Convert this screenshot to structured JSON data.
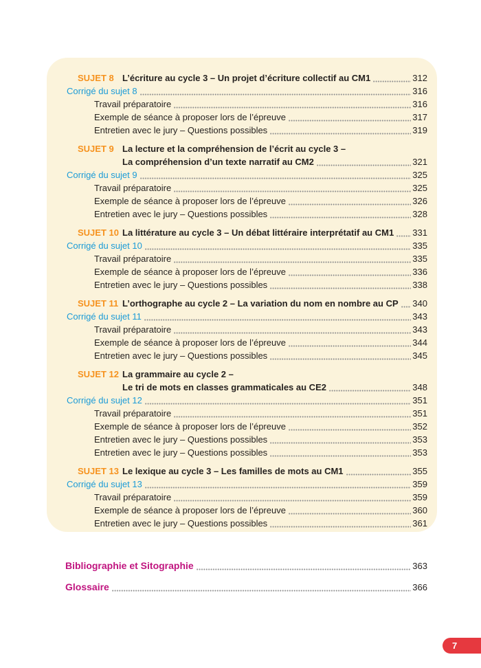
{
  "colors": {
    "card_background": "#fbf3db",
    "sujet_accent": "#f6921e",
    "corrige_accent": "#1b9bd7",
    "body_text": "#262220",
    "leader_dots": "#8f8f8f",
    "footer_accent": "#c0147f",
    "page_tab_background": "#e6393f",
    "page_tab_text": "#ffffff"
  },
  "page_tab": {
    "number": "7"
  },
  "toc": {
    "sections": [
      {
        "label": "SUJET 8",
        "title_lines": [
          "L’écriture au cycle 3 – Un projet d’écriture collectif au CM1"
        ],
        "page": "312",
        "corrige": {
          "label": "Corrigé du sujet 8",
          "page": "316"
        },
        "items": [
          {
            "label": "Travail préparatoire",
            "page": "316"
          },
          {
            "label": "Exemple de séance à proposer lors de l’épreuve",
            "page": "317"
          },
          {
            "label": "Entretien avec le jury – Questions possibles",
            "page": "319"
          }
        ]
      },
      {
        "label": "SUJET 9",
        "title_lines": [
          "La lecture et la compréhension de l’écrit au cycle 3 –",
          "La compréhension d’un texte narratif au CM2"
        ],
        "page": "321",
        "corrige": {
          "label": "Corrigé du sujet 9",
          "page": "325"
        },
        "items": [
          {
            "label": "Travail préparatoire",
            "page": "325"
          },
          {
            "label": "Exemple de séance à proposer lors de l’épreuve",
            "page": "326"
          },
          {
            "label": "Entretien avec le jury – Questions possibles",
            "page": "328"
          }
        ]
      },
      {
        "label": "SUJET 10",
        "title_lines": [
          "La littérature au cycle 3 – Un débat littéraire interprétatif au CM1"
        ],
        "page": "331",
        "corrige": {
          "label": "Corrigé du sujet 10",
          "page": "335"
        },
        "items": [
          {
            "label": "Travail préparatoire",
            "page": "335"
          },
          {
            "label": "Exemple de séance à proposer lors de l’épreuve",
            "page": "336"
          },
          {
            "label": "Entretien avec le jury – Questions possibles",
            "page": "338"
          }
        ]
      },
      {
        "label": "SUJET 11",
        "title_lines": [
          "L’orthographe au cycle 2 – La variation du nom en nombre au CP"
        ],
        "page": "340",
        "corrige": {
          "label": "Corrigé du sujet 11",
          "page": "343"
        },
        "items": [
          {
            "label": "Travail préparatoire",
            "page": "343"
          },
          {
            "label": "Exemple de séance à proposer lors de l’épreuve",
            "page": "344"
          },
          {
            "label": "Entretien avec le jury – Questions possibles",
            "page": "345"
          }
        ]
      },
      {
        "label": "SUJET 12",
        "title_lines": [
          "La grammaire au cycle 2 –",
          "Le tri de mots en classes grammaticales au CE2"
        ],
        "page": "348",
        "corrige": {
          "label": "Corrigé du sujet 12",
          "page": "351"
        },
        "items": [
          {
            "label": "Travail préparatoire",
            "page": "351"
          },
          {
            "label": "Exemple de séance à proposer lors de l’épreuve",
            "page": "352"
          },
          {
            "label": "Entretien avec le jury – Questions possibles",
            "page": "353"
          },
          {
            "label": "Entretien avec le jury – Questions possibles",
            "page": "353"
          }
        ]
      },
      {
        "label": "SUJET 13",
        "title_lines": [
          "Le lexique au cycle 3 – Les familles de mots au CM1"
        ],
        "page": "355",
        "corrige": {
          "label": "Corrigé du sujet 13",
          "page": "359"
        },
        "items": [
          {
            "label": "Travail préparatoire",
            "page": "359"
          },
          {
            "label": "Exemple de séance à proposer lors de l’épreuve",
            "page": "360"
          },
          {
            "label": "Entretien avec le jury – Questions possibles",
            "page": "361"
          }
        ]
      }
    ],
    "footer_links": [
      {
        "label": "Bibliographie et Sitographie",
        "page": "363"
      },
      {
        "label": "Glossaire",
        "page": "366"
      }
    ]
  }
}
